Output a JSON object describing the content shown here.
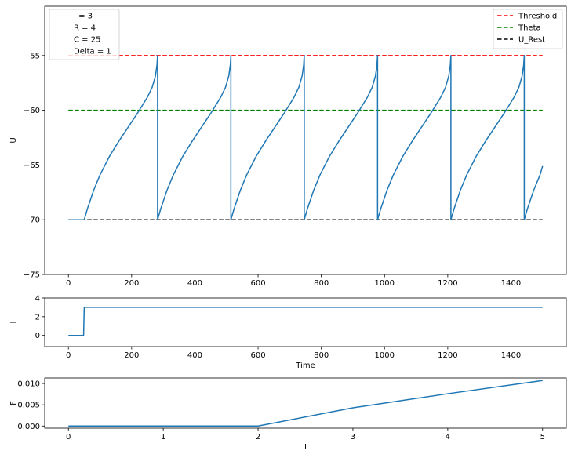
{
  "chart_data": [
    {
      "type": "line",
      "ylabel": "U",
      "xlabel": "",
      "xlim": [
        -75,
        1575
      ],
      "ylim": [
        -75,
        -50.5
      ],
      "xticks": [
        0,
        200,
        400,
        600,
        800,
        1000,
        1200,
        1400
      ],
      "yticks": [
        -75,
        -70,
        -65,
        -60,
        -55
      ],
      "grid": false,
      "text_box": {
        "placement": "top-left",
        "lines": [
          "I = 3",
          "R = 4",
          "C = 25",
          "Delta = 1"
        ]
      },
      "legend": {
        "placement": "top-right",
        "entries": [
          {
            "name": "Threshold",
            "color": "#ff0000",
            "style": "dashed"
          },
          {
            "name": "Theta",
            "color": "#008000",
            "style": "dashed"
          },
          {
            "name": "U_Rest",
            "color": "#000000",
            "style": "dashed"
          }
        ]
      },
      "series": [
        {
          "name": "Threshold",
          "color": "#ff0000",
          "style": "dashed",
          "x": [
            0,
            1500
          ],
          "y": [
            -55,
            -55
          ]
        },
        {
          "name": "Theta",
          "color": "#008000",
          "style": "dashed",
          "x": [
            0,
            1500
          ],
          "y": [
            -60,
            -60
          ]
        },
        {
          "name": "U_Rest",
          "color": "#000000",
          "style": "dashed",
          "x": [
            0,
            1500
          ],
          "y": [
            -70,
            -70
          ]
        },
        {
          "color": "#1f77b4",
          "style": "solid",
          "x": [
            0,
            50,
            60,
            80,
            100,
            130,
            160,
            190,
            220,
            250,
            265,
            275,
            280,
            282,
            282,
            292,
            312,
            332,
            362,
            392,
            422,
            452,
            482,
            497,
            507,
            512,
            514,
            514,
            524,
            544,
            564,
            594,
            624,
            654,
            684,
            714,
            729,
            739,
            744,
            746,
            746,
            756,
            776,
            796,
            826,
            856,
            886,
            916,
            946,
            961,
            971,
            976,
            978,
            978,
            988,
            1008,
            1028,
            1058,
            1088,
            1118,
            1148,
            1178,
            1193,
            1203,
            1208,
            1210,
            1210,
            1220,
            1240,
            1260,
            1290,
            1320,
            1350,
            1380,
            1410,
            1425,
            1435,
            1440,
            1442,
            1442,
            1452,
            1472,
            1492,
            1500
          ],
          "y": [
            -70,
            -70,
            -69,
            -67.3,
            -65.9,
            -64.2,
            -62.8,
            -61.5,
            -60.2,
            -58.8,
            -57.9,
            -56.9,
            -55.9,
            -55,
            -70,
            -69,
            -67.3,
            -65.9,
            -64.2,
            -62.8,
            -61.5,
            -60.2,
            -58.8,
            -57.9,
            -56.9,
            -55.9,
            -55,
            -70,
            -69,
            -67.3,
            -65.9,
            -64.2,
            -62.8,
            -61.5,
            -60.2,
            -58.8,
            -57.9,
            -56.9,
            -55.9,
            -55,
            -70,
            -69,
            -67.3,
            -65.9,
            -64.2,
            -62.8,
            -61.5,
            -60.2,
            -58.8,
            -57.9,
            -56.9,
            -55.9,
            -55,
            -70,
            -69,
            -67.3,
            -65.9,
            -64.2,
            -62.8,
            -61.5,
            -60.2,
            -58.8,
            -57.9,
            -56.9,
            -55.9,
            -55,
            -70,
            -69,
            -67.3,
            -65.9,
            -64.2,
            -62.8,
            -61.5,
            -60.2,
            -58.8,
            -57.9,
            -56.9,
            -55.9,
            -55,
            -70,
            -69,
            -67.3,
            -65.9,
            -65.1
          ]
        }
      ]
    },
    {
      "type": "line",
      "ylabel": "I",
      "xlabel": "Time",
      "xlim": [
        -75,
        1575
      ],
      "ylim": [
        -1.2,
        4
      ],
      "xticks": [
        0,
        200,
        400,
        600,
        800,
        1000,
        1200,
        1400
      ],
      "yticks": [
        0,
        2,
        4
      ],
      "grid": false,
      "series": [
        {
          "color": "#1f77b4",
          "style": "solid",
          "x": [
            0,
            48,
            50,
            1500
          ],
          "y": [
            0,
            0,
            3,
            3
          ]
        }
      ]
    },
    {
      "type": "line",
      "ylabel": "F",
      "xlabel": "I",
      "xlim": [
        -0.25,
        5.25
      ],
      "ylim": [
        -0.0005,
        0.0113
      ],
      "xticks": [
        0,
        1,
        2,
        3,
        4,
        5
      ],
      "yticks": [
        0.0,
        0.005,
        0.01
      ],
      "ytick_labels": [
        "0.000",
        "0.005",
        "0.010"
      ],
      "grid": false,
      "series": [
        {
          "color": "#1f77b4",
          "style": "solid",
          "x": [
            0,
            1,
            2,
            3,
            4,
            5
          ],
          "y": [
            0,
            0,
            0,
            0.0043,
            0.0076,
            0.0107
          ]
        }
      ]
    }
  ]
}
